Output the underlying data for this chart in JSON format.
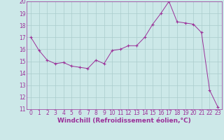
{
  "x": [
    0,
    1,
    2,
    3,
    4,
    5,
    6,
    7,
    8,
    9,
    10,
    11,
    12,
    13,
    14,
    15,
    16,
    17,
    18,
    19,
    20,
    21,
    22,
    23
  ],
  "y": [
    17.0,
    15.9,
    15.1,
    14.8,
    14.9,
    14.6,
    14.5,
    14.4,
    15.1,
    14.8,
    15.9,
    16.0,
    16.3,
    16.3,
    17.0,
    18.1,
    19.0,
    20.0,
    18.3,
    18.2,
    18.1,
    17.4,
    12.6,
    11.2
  ],
  "xlabel": "Windchill (Refroidissement éolien,°C)",
  "xlim": [
    -0.5,
    23.5
  ],
  "ylim": [
    11,
    20
  ],
  "yticks": [
    11,
    12,
    13,
    14,
    15,
    16,
    17,
    18,
    19,
    20
  ],
  "xticks": [
    0,
    1,
    2,
    3,
    4,
    5,
    6,
    7,
    8,
    9,
    10,
    11,
    12,
    13,
    14,
    15,
    16,
    17,
    18,
    19,
    20,
    21,
    22,
    23
  ],
  "line_color": "#9b3099",
  "marker": "+",
  "marker_size": 3,
  "bg_color": "#cce8e8",
  "grid_color": "#aacccc",
  "xlabel_color": "#9b3099",
  "tick_color": "#9b3099",
  "spine_color": "#9b3099",
  "tick_fontsize": 5.5,
  "xlabel_fontsize": 6.5
}
